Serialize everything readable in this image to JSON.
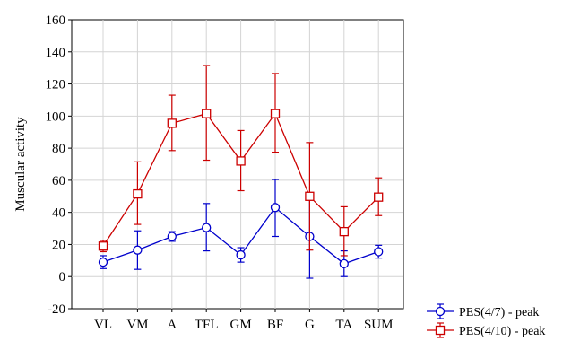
{
  "chart_data": {
    "type": "line",
    "title": "",
    "xlabel": "",
    "ylabel": "Muscular activity",
    "categories": [
      "VL",
      "VM",
      "A",
      "TFL",
      "GM",
      "BF",
      "G",
      "TA",
      "SUM"
    ],
    "ylim": [
      -20,
      160
    ],
    "yticks": [
      -20,
      0,
      20,
      40,
      60,
      80,
      100,
      120,
      140,
      160
    ],
    "grid": true,
    "legend_position": "bottom-right",
    "series": [
      {
        "name": "PES(4/7) - peak",
        "color": "#0000cc",
        "marker": "circle",
        "values": [
          9,
          16.5,
          25,
          30.5,
          13.5,
          43,
          25,
          8,
          15.5
        ],
        "err_low": [
          5,
          4.5,
          22,
          16,
          9,
          25,
          -1,
          0,
          11.5
        ],
        "err_high": [
          13,
          28.5,
          28,
          45.5,
          18,
          60.5,
          51,
          16,
          19.5
        ]
      },
      {
        "name": "PES(4/10) - peak",
        "color": "#cc0000",
        "marker": "square",
        "values": [
          19,
          51.5,
          95.5,
          101.5,
          72,
          101.5,
          50,
          28,
          49.5
        ],
        "err_low": [
          15.5,
          32.5,
          78.5,
          72.5,
          53.5,
          77.5,
          16.5,
          13,
          38
        ],
        "err_high": [
          22.5,
          71.5,
          113,
          131.5,
          91,
          126.5,
          83.5,
          43.5,
          61.5
        ]
      }
    ]
  }
}
